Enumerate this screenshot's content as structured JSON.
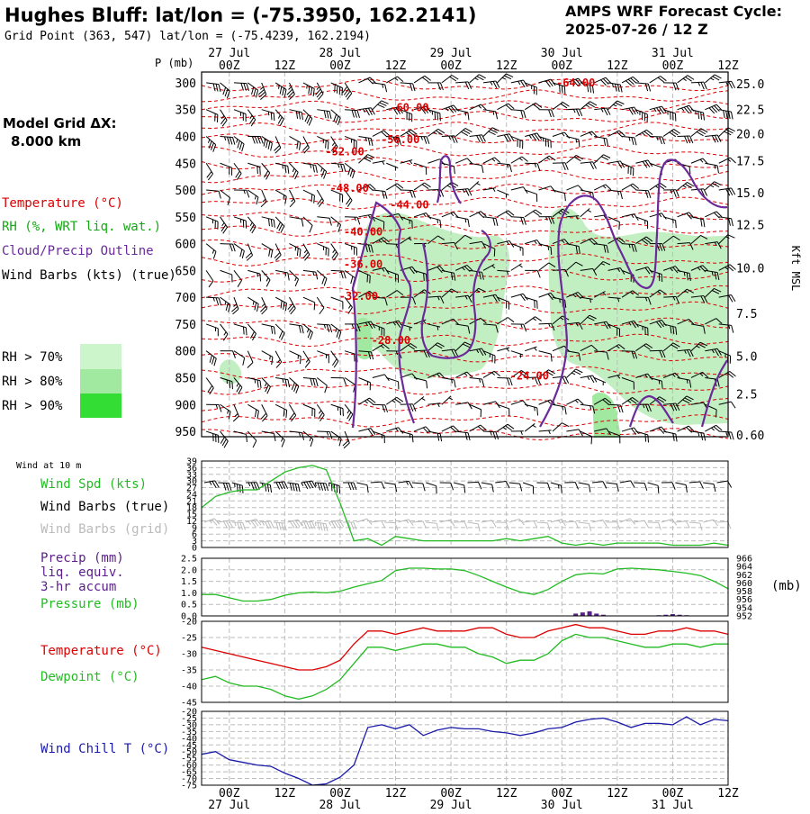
{
  "header": {
    "title": "Hughes Bluff:  lat/lon = (-75.3950, 162.2141)",
    "gridpoint": "Grid Point (363, 547) lat/lon = (-75.4239, 162.2194)",
    "cycle_label": "AMPS WRF Forecast Cycle:",
    "cycle_value": "2025-07-26 / 12  Z"
  },
  "left_panel": {
    "grid_label_1": "Model Grid ΔX:",
    "grid_label_2": "8.000 km",
    "legend_temp": "Temperature (°C)",
    "legend_rh": "RH (%, WRT liq. wat.)",
    "legend_cloud": "Cloud/Precip Outline",
    "legend_wind": "Wind Barbs (kts) (true)",
    "rh_70": "RH > 70%",
    "rh_80": "RH > 80%",
    "rh_90": "RH > 90%"
  },
  "colors": {
    "temperature": "#dd0000",
    "rh_legend": "#11aa11",
    "cloud": "#6a2a9a",
    "rh70": "#ccf5cc",
    "rh80": "#a1e8a1",
    "rh90": "#33dd33",
    "fill_panel": "#c2efc2",
    "wind_speed": "#22bb22",
    "dewpoint": "#22bb22",
    "pressure": "#22bb22",
    "precip": "#5a1e8a",
    "windchill": "#1a1aaa",
    "grid_barbs": "#bbbbbb",
    "grid_line": "#bbbbbb"
  },
  "time_axis": {
    "ticks": [
      "00Z",
      "12Z",
      "00Z",
      "12Z",
      "00Z",
      "12Z",
      "00Z",
      "12Z",
      "00Z",
      "12Z"
    ],
    "tick_times": [
      12,
      24,
      36,
      48,
      60,
      72,
      84,
      96,
      108,
      120
    ],
    "day_labels": [
      "27 Jul",
      "28 Jul",
      "29 Jul",
      "30 Jul",
      "31 Jul"
    ],
    "day_times": [
      12,
      36,
      60,
      84,
      108
    ],
    "range": [
      6,
      120
    ]
  },
  "chart_data": [
    {
      "type": "contour",
      "id": "cross_section",
      "ylabel_left": "P (mb)",
      "ylabel_right": "Kft MSL",
      "pressure_ticks": [
        300,
        350,
        400,
        450,
        500,
        550,
        600,
        650,
        700,
        750,
        800,
        850,
        900,
        950
      ],
      "height_ticks": [
        "25.0",
        "22.5",
        "20.0",
        "17.5",
        "15.0",
        "12.5",
        "10.0",
        "7.5",
        "5.0",
        "2.5",
        "0.60"
      ],
      "height_tick_pressures": [
        302,
        350,
        395,
        445,
        505,
        565,
        645,
        730,
        810,
        880,
        957
      ],
      "pressure_range": [
        280,
        960
      ],
      "temperature_labels": [
        {
          "text": "-64.00",
          "t": 87,
          "p": 307
        },
        {
          "text": "-60.00",
          "t": 51,
          "p": 353
        },
        {
          "text": "-56.00",
          "t": 49,
          "p": 413
        },
        {
          "text": "-52.00",
          "t": 37,
          "p": 435
        },
        {
          "text": "-48.00",
          "t": 38,
          "p": 503
        },
        {
          "text": "-44.00",
          "t": 51,
          "p": 534
        },
        {
          "text": "-40.00",
          "t": 41,
          "p": 585
        },
        {
          "text": "-36.00",
          "t": 41,
          "p": 645
        },
        {
          "text": "-32.00",
          "t": 40,
          "p": 705
        },
        {
          "text": "-28.00",
          "t": 47,
          "p": 787
        },
        {
          "text": "-24.00",
          "t": 77,
          "p": 853
        }
      ]
    },
    {
      "type": "line",
      "id": "wind_10m",
      "title": "Wind at 10 m",
      "legend": [
        "Wind Spd (kts)",
        "Wind Barbs (true)",
        "Wind Barbs (grid)"
      ],
      "y_ticks": [
        0,
        3,
        6,
        9,
        12,
        15,
        18,
        21,
        24,
        27,
        30,
        33,
        36,
        39
      ],
      "ylim": [
        0,
        39
      ],
      "x": [
        6,
        9,
        12,
        15,
        18,
        21,
        24,
        27,
        30,
        33,
        36,
        39,
        42,
        45,
        48,
        51,
        54,
        57,
        60,
        63,
        66,
        69,
        72,
        75,
        78,
        81,
        84,
        87,
        90,
        93,
        96,
        99,
        102,
        105,
        108,
        111,
        114,
        117,
        120
      ],
      "series": [
        {
          "name": "Wind Spd (kts)",
          "values": [
            18,
            23,
            25,
            26,
            26,
            30,
            34,
            36,
            37,
            35,
            20,
            3,
            4,
            1,
            5,
            4,
            3,
            3,
            3,
            3,
            3,
            3,
            4,
            3,
            4,
            5,
            2,
            1,
            2,
            1,
            2,
            2,
            2,
            2,
            1,
            1,
            1,
            2,
            1
          ]
        }
      ]
    },
    {
      "type": "bar_line",
      "id": "precip_pressure",
      "legend": [
        "Precip (mm)",
        "liq. equiv.",
        "3-hr accum",
        "Pressure (mb)"
      ],
      "y_ticks_left": [
        "0.0",
        "0.5",
        "1.0",
        "1.5",
        "2.0",
        "2.5"
      ],
      "y_ticks_left_values": [
        0,
        0.5,
        1,
        1.5,
        2,
        2.5
      ],
      "y_ticks_right": [
        952,
        954,
        956,
        958,
        960,
        962,
        964,
        966
      ],
      "right_unit": "(mb)",
      "ylim_left": [
        0,
        2.5
      ],
      "ylim_right": [
        952,
        966
      ],
      "x": [
        6,
        9,
        12,
        15,
        18,
        21,
        24,
        27,
        30,
        33,
        36,
        39,
        42,
        45,
        48,
        51,
        54,
        57,
        60,
        63,
        66,
        69,
        72,
        75,
        78,
        81,
        84,
        87,
        90,
        93,
        96,
        99,
        102,
        105,
        108,
        111,
        114,
        117,
        120
      ],
      "pressure": [
        957.2,
        957.2,
        956.4,
        955.6,
        955.6,
        956.0,
        957.0,
        957.6,
        957.8,
        957.6,
        958.0,
        959.0,
        959.8,
        960.6,
        963.0,
        963.6,
        963.6,
        963.4,
        963.4,
        963.0,
        961.8,
        960.4,
        959.0,
        957.8,
        957.2,
        958.4,
        960.4,
        962.0,
        962.4,
        962.2,
        963.4,
        963.6,
        963.4,
        963.2,
        962.8,
        962.4,
        961.8,
        960.4,
        958.6
      ],
      "precip_x": [
        87,
        88.5,
        90,
        91.5,
        93,
        94.5,
        105,
        106.5,
        108,
        109.5,
        111
      ],
      "precip_mm": [
        0.1,
        0.15,
        0.2,
        0.1,
        0.05,
        0.02,
        0.03,
        0.05,
        0.08,
        0.05,
        0.03
      ]
    },
    {
      "type": "line",
      "id": "temp_dewpoint",
      "legend": [
        "Temperature (°C)",
        "Dewpoint (°C)"
      ],
      "y_ticks": [
        -20,
        -25,
        -30,
        -35,
        -40,
        -45
      ],
      "ylim": [
        -45,
        -20
      ],
      "x": [
        6,
        9,
        12,
        15,
        18,
        21,
        24,
        27,
        30,
        33,
        36,
        39,
        42,
        45,
        48,
        51,
        54,
        57,
        60,
        63,
        66,
        69,
        72,
        75,
        78,
        81,
        84,
        87,
        90,
        93,
        96,
        99,
        102,
        105,
        108,
        111,
        114,
        117,
        120
      ],
      "series": [
        {
          "name": "Temperature (°C)",
          "values": [
            -28,
            -29,
            -30,
            -31,
            -32,
            -33,
            -34,
            -35,
            -35,
            -34,
            -32,
            -27,
            -23,
            -23,
            -24,
            -23,
            -22,
            -23,
            -23,
            -23,
            -22,
            -22,
            -24,
            -25,
            -25,
            -23,
            -22,
            -21,
            -22,
            -22,
            -23,
            -24,
            -24,
            -23,
            -23,
            -22,
            -23,
            -23,
            -24
          ]
        },
        {
          "name": "Dewpoint (°C)",
          "values": [
            -38,
            -37,
            -39,
            -40,
            -40,
            -41,
            -43,
            -44,
            -43,
            -41,
            -38,
            -33,
            -28,
            -28,
            -29,
            -28,
            -27,
            -27,
            -28,
            -28,
            -30,
            -31,
            -33,
            -32,
            -32,
            -30,
            -26,
            -24,
            -25,
            -25,
            -26,
            -27,
            -28,
            -28,
            -27,
            -27,
            -28,
            -27,
            -27
          ]
        }
      ]
    },
    {
      "type": "line",
      "id": "windchill",
      "legend": [
        "Wind Chill T (°C)"
      ],
      "y_ticks": [
        -20,
        -25,
        -30,
        -35,
        -40,
        -45,
        -50,
        -55,
        -60,
        -65,
        -70,
        -75
      ],
      "ylim": [
        -75,
        -20
      ],
      "x": [
        6,
        9,
        12,
        15,
        18,
        21,
        24,
        27,
        30,
        33,
        36,
        39,
        42,
        45,
        48,
        51,
        54,
        57,
        60,
        63,
        66,
        69,
        72,
        75,
        78,
        81,
        84,
        87,
        90,
        93,
        96,
        99,
        102,
        105,
        108,
        111,
        114,
        117,
        120
      ],
      "series": [
        {
          "name": "Wind Chill T (°C)",
          "values": [
            -52,
            -50,
            -56,
            -58,
            -60,
            -61,
            -66,
            -70,
            -75,
            -74,
            -69,
            -60,
            -32,
            -30,
            -33,
            -30,
            -38,
            -34,
            -32,
            -33,
            -33,
            -35,
            -36,
            -38,
            -36,
            -33,
            -32,
            -28,
            -26,
            -25,
            -28,
            -32,
            -29,
            -29,
            -30,
            -24,
            -30,
            -26,
            -27
          ]
        }
      ]
    }
  ]
}
